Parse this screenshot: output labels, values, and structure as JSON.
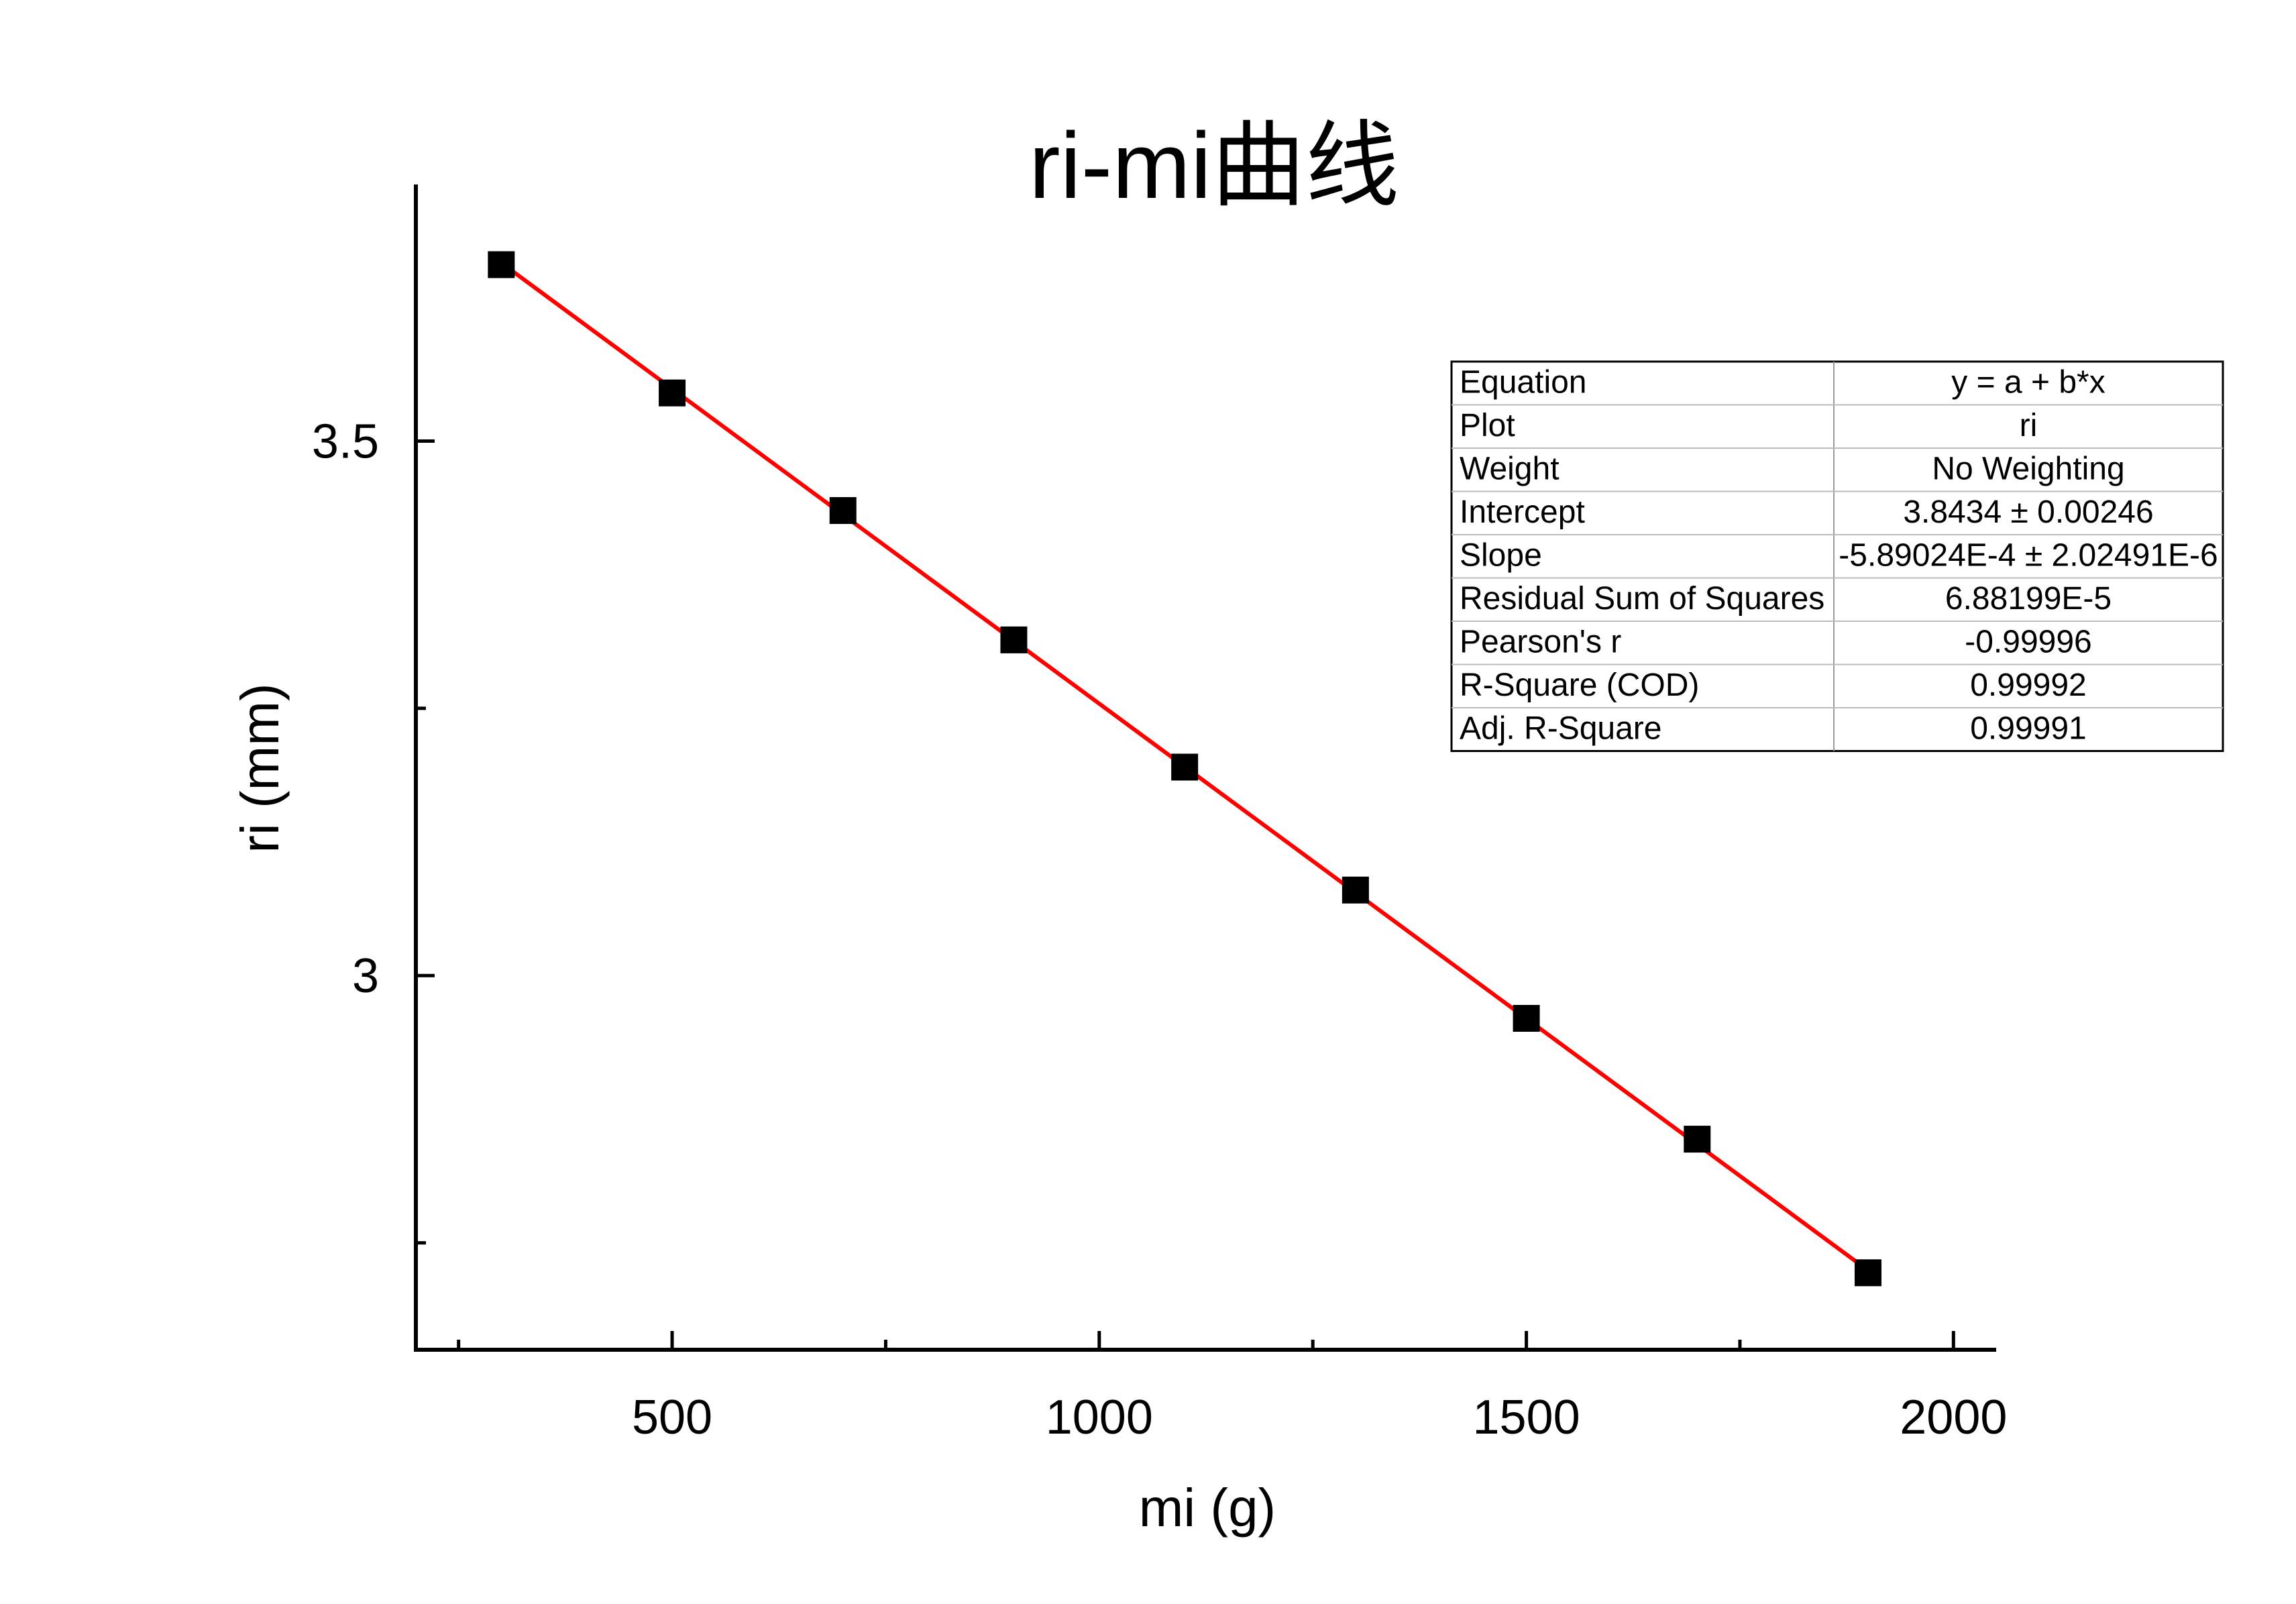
{
  "chart_data": {
    "type": "scatter",
    "title": "ri-mi曲线",
    "xlabel": "mi (g)",
    "ylabel": "ri (mm)",
    "xlim": [
      200,
      2050
    ],
    "ylim": [
      2.65,
      3.74
    ],
    "x_ticks": [
      500,
      1000,
      1500,
      2000
    ],
    "x_minor_ticks": [
      250,
      750,
      1250,
      1750
    ],
    "y_ticks": [
      3,
      3.5
    ],
    "y_minor_ticks": [
      2.75,
      3.25
    ],
    "grid": false,
    "series": [
      {
        "marker": "square",
        "color": "#000000",
        "x": [
          300,
          500,
          700,
          900,
          1100,
          1300,
          1500,
          1700,
          1900
        ],
        "y": [
          3.665,
          3.545,
          3.435,
          3.314,
          3.195,
          3.08,
          2.96,
          2.847,
          2.722
        ]
      }
    ],
    "fit": {
      "color": "#ff0000",
      "x_range": [
        300,
        1900
      ],
      "intercept": 3.8434,
      "slope": -0.000589024
    },
    "stats_table": [
      [
        "Equation",
        "y = a + b*x"
      ],
      [
        "Plot",
        "ri"
      ],
      [
        "Weight",
        "No Weighting"
      ],
      [
        "Intercept",
        "3.8434 ± 0.00246"
      ],
      [
        "Slope",
        "-5.89024E-4 ± 2.02491E-6"
      ],
      [
        "Residual Sum of Squares",
        "6.88199E-5"
      ],
      [
        "Pearson's r",
        "-0.99996"
      ],
      [
        "R-Square (COD)",
        "0.99992"
      ],
      [
        "Adj. R-Square",
        "0.99991"
      ]
    ]
  }
}
